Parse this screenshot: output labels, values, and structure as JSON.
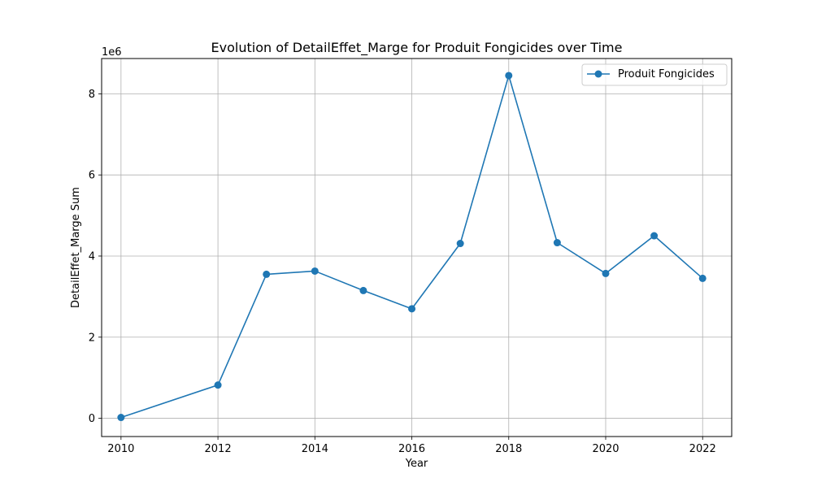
{
  "chart_data": {
    "type": "line",
    "title": "Evolution of DetailEffet_Marge for Produit Fongicides over Time",
    "xlabel": "Year",
    "ylabel": "DetailEffet_Marge Sum",
    "y_scale_note": "1e6",
    "xlim": [
      2009.6,
      2022.6
    ],
    "ylim": [
      -0.45,
      8.87
    ],
    "y_unit_multiplier": 1000000,
    "x_ticks": [
      2010,
      2012,
      2014,
      2016,
      2018,
      2020,
      2022
    ],
    "y_ticks": [
      0,
      2,
      4,
      6,
      8
    ],
    "grid": true,
    "legend_position": "top-right",
    "series": [
      {
        "name": "Produit Fongicides",
        "color": "#1f77b4",
        "marker": "circle",
        "x": [
          2010,
          2012,
          2013,
          2014,
          2015,
          2016,
          2017,
          2018,
          2019,
          2020,
          2021,
          2022
        ],
        "y": [
          0.02,
          0.82,
          3.55,
          3.63,
          3.15,
          2.7,
          4.31,
          8.45,
          4.33,
          3.57,
          4.5,
          3.45
        ]
      }
    ]
  }
}
